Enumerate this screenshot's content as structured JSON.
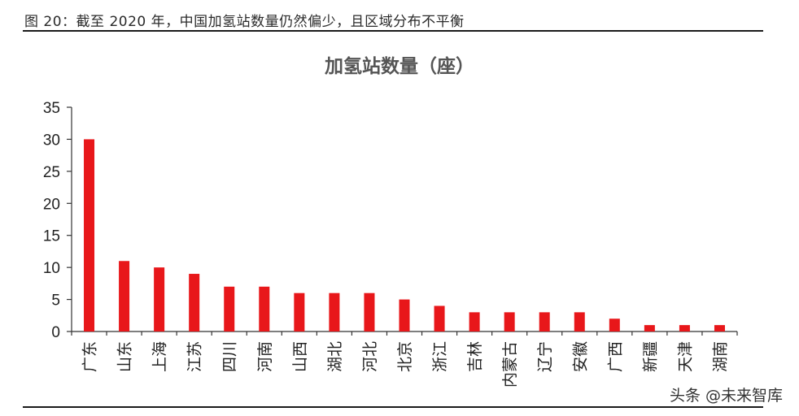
{
  "caption": "图 20：截至 2020 年，中国加氢站数量仍然偏少，且区域分布不平衡",
  "watermark": "头条 @未来智库",
  "chart_data": {
    "type": "bar",
    "title": "加氢站数量（座）",
    "categories": [
      "广东",
      "山东",
      "上海",
      "江苏",
      "四川",
      "河南",
      "山西",
      "湖北",
      "河北",
      "北京",
      "浙江",
      "吉林",
      "内蒙古",
      "辽宁",
      "安徽",
      "广西",
      "新疆",
      "天津",
      "湖南"
    ],
    "values": [
      30,
      11,
      10,
      9,
      7,
      7,
      6,
      6,
      6,
      5,
      4,
      3,
      3,
      3,
      3,
      2,
      1,
      1,
      1
    ],
    "ylim": [
      0,
      35
    ],
    "yticks": [
      0,
      5,
      10,
      15,
      20,
      25,
      30,
      35
    ],
    "bar_color": "#e8171a",
    "grid": false,
    "legend": "none"
  }
}
